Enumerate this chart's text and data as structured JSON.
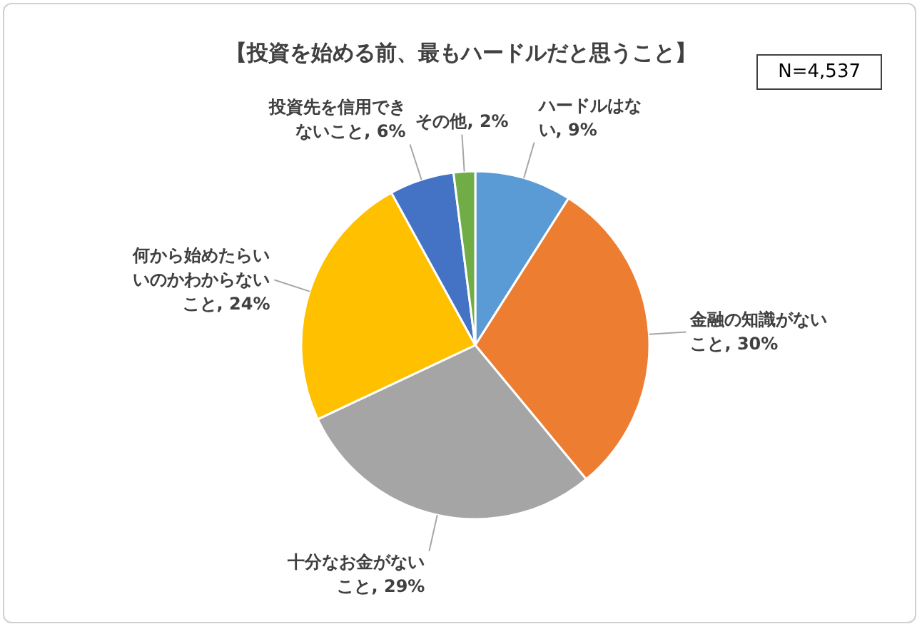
{
  "chart_data": {
    "type": "pie",
    "title": "【投資を始める前、最もハードルだと思うこと】",
    "annotations": [
      "N=4,537"
    ],
    "categories": [
      "ハードルはない",
      "金融の知識がないこと",
      "十分なお金がないこと",
      "何から始めたらいいのかわからないこと",
      "投資先を信用できないこと",
      "その他"
    ],
    "values": [
      9,
      30,
      29,
      24,
      6,
      2
    ],
    "value_labels": [
      "9%",
      "30%",
      "29%",
      "24%",
      "6%",
      "2%"
    ],
    "colors": [
      "#5b9bd5",
      "#ed7d31",
      "#a5a5a5",
      "#ffc000",
      "#4472c4",
      "#70ad47"
    ]
  }
}
